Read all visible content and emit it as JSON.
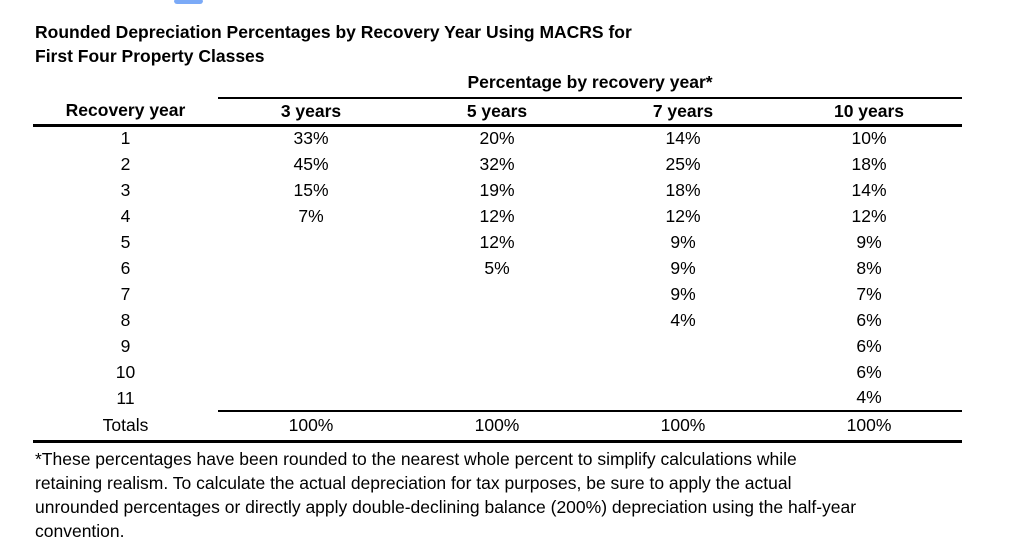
{
  "page": {
    "background": "#ffffff",
    "clipped_blue_element_color": "#7baaf7"
  },
  "title": {
    "line1": "Rounded Depreciation Percentages by Recovery Year Using MACRS for",
    "line2": "First Four Property Classes"
  },
  "table": {
    "group_header": "Percentage by recovery year*",
    "columns": [
      "Recovery year",
      "3 years",
      "5 years",
      "7 years",
      "10 years"
    ],
    "rows": [
      [
        "1",
        "33%",
        "20%",
        "14%",
        "10%"
      ],
      [
        "2",
        "45%",
        "32%",
        "25%",
        "18%"
      ],
      [
        "3",
        "15%",
        "19%",
        "18%",
        "14%"
      ],
      [
        "4",
        "7%",
        "12%",
        "12%",
        "12%"
      ],
      [
        "5",
        "",
        "12%",
        "9%",
        "9%"
      ],
      [
        "6",
        "",
        "5%",
        "9%",
        "8%"
      ],
      [
        "7",
        "",
        "",
        "9%",
        "7%"
      ],
      [
        "8",
        "",
        "",
        "4%",
        "6%"
      ],
      [
        "9",
        "",
        "",
        "",
        "6%"
      ],
      [
        "10",
        "",
        "",
        "",
        "6%"
      ],
      [
        "11",
        "",
        "",
        "",
        "4%"
      ]
    ],
    "totals": [
      "Totals",
      "100%",
      "100%",
      "100%",
      "100%"
    ]
  },
  "footnote": {
    "lines": [
      "*These percentages have been rounded to the nearest whole percent to simplify calculations while",
      "retaining realism. To calculate the actual depreciation for tax purposes, be sure to apply the actual",
      "unrounded percentages or directly apply double-declining balance (200%) depreciation using the half-year",
      "convention."
    ]
  },
  "chart_data": {
    "type": "table",
    "title": "Rounded Depreciation Percentages by Recovery Year Using MACRS for First Four Property Classes",
    "group_header": "Percentage by recovery year*",
    "columns": [
      "Recovery year",
      "3 years",
      "5 years",
      "7 years",
      "10 years"
    ],
    "rows": [
      [
        "1",
        "33%",
        "20%",
        "14%",
        "10%"
      ],
      [
        "2",
        "45%",
        "32%",
        "25%",
        "18%"
      ],
      [
        "3",
        "15%",
        "19%",
        "18%",
        "14%"
      ],
      [
        "4",
        "7%",
        "12%",
        "12%",
        "12%"
      ],
      [
        "5",
        "",
        "12%",
        "9%",
        "9%"
      ],
      [
        "6",
        "",
        "5%",
        "9%",
        "8%"
      ],
      [
        "7",
        "",
        "",
        "9%",
        "7%"
      ],
      [
        "8",
        "",
        "",
        "4%",
        "6%"
      ],
      [
        "9",
        "",
        "",
        "",
        "6%"
      ],
      [
        "10",
        "",
        "",
        "",
        "6%"
      ],
      [
        "11",
        "",
        "",
        "",
        "4%"
      ],
      [
        "Totals",
        "100%",
        "100%",
        "100%",
        "100%"
      ]
    ]
  }
}
